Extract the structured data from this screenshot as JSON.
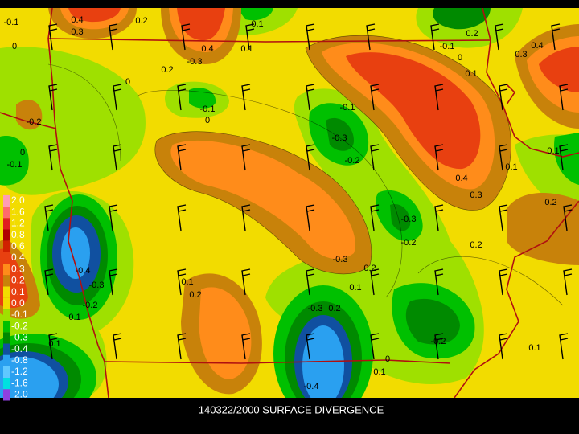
{
  "title": "140322/2000 SURFACE DIVERGENCE",
  "legend": [
    {
      "label": "2.0",
      "color": "#ff9cb4"
    },
    {
      "label": "1.6",
      "color": "#ff6a6a"
    },
    {
      "label": "1.2",
      "color": "#e02020"
    },
    {
      "label": "0.8",
      "color": "#b00000"
    },
    {
      "label": "0.6",
      "color": "#d02000"
    },
    {
      "label": "0.4",
      "color": "#e84010"
    },
    {
      "label": "0.3",
      "color": "#ff8c1a"
    },
    {
      "label": "0.2",
      "color": "#c8820a"
    },
    {
      "label": "0.1",
      "color": "#f2dc00"
    },
    {
      "label": "0.0",
      "color": "#f2dc00"
    },
    {
      "label": "-0.1",
      "color": "#9fe000"
    },
    {
      "label": "-0.2",
      "color": "#00c000"
    },
    {
      "label": "-0.3",
      "color": "#008a00"
    },
    {
      "label": "-0.4",
      "color": "#1050a0"
    },
    {
      "label": "-0.8",
      "color": "#2aa0f0"
    },
    {
      "label": "-1.2",
      "color": "#60c8ff"
    },
    {
      "label": "-1.6",
      "color": "#00e0e0"
    },
    {
      "label": "-2.0",
      "color": "#9040e0"
    }
  ],
  "contour_labels": [
    "-0.1",
    "0.4",
    "0.3",
    "0.2",
    "0.1",
    "0.4",
    "0.1",
    "-0.3",
    "0.2",
    "0",
    "-0.1",
    "0",
    "0",
    "-0.2",
    "0",
    "-0.1",
    "-0.1",
    "-0.3",
    "-0.2",
    "0.4",
    "0.3",
    "0.2",
    "-0.3",
    "-0.2",
    "-0.3",
    "0.2",
    "0.1",
    "0.1",
    "0.2",
    "-0.4",
    "-0.3",
    "-0.2",
    "0.1",
    "0.1",
    "-0.3",
    "0.2",
    "-0.2",
    "0.1",
    "0",
    "0.1",
    "-0.4",
    "0.1",
    "0.1",
    "0.2",
    "0.4",
    "0.3",
    "0.2",
    "-0.1",
    "0",
    "0.1"
  ]
}
